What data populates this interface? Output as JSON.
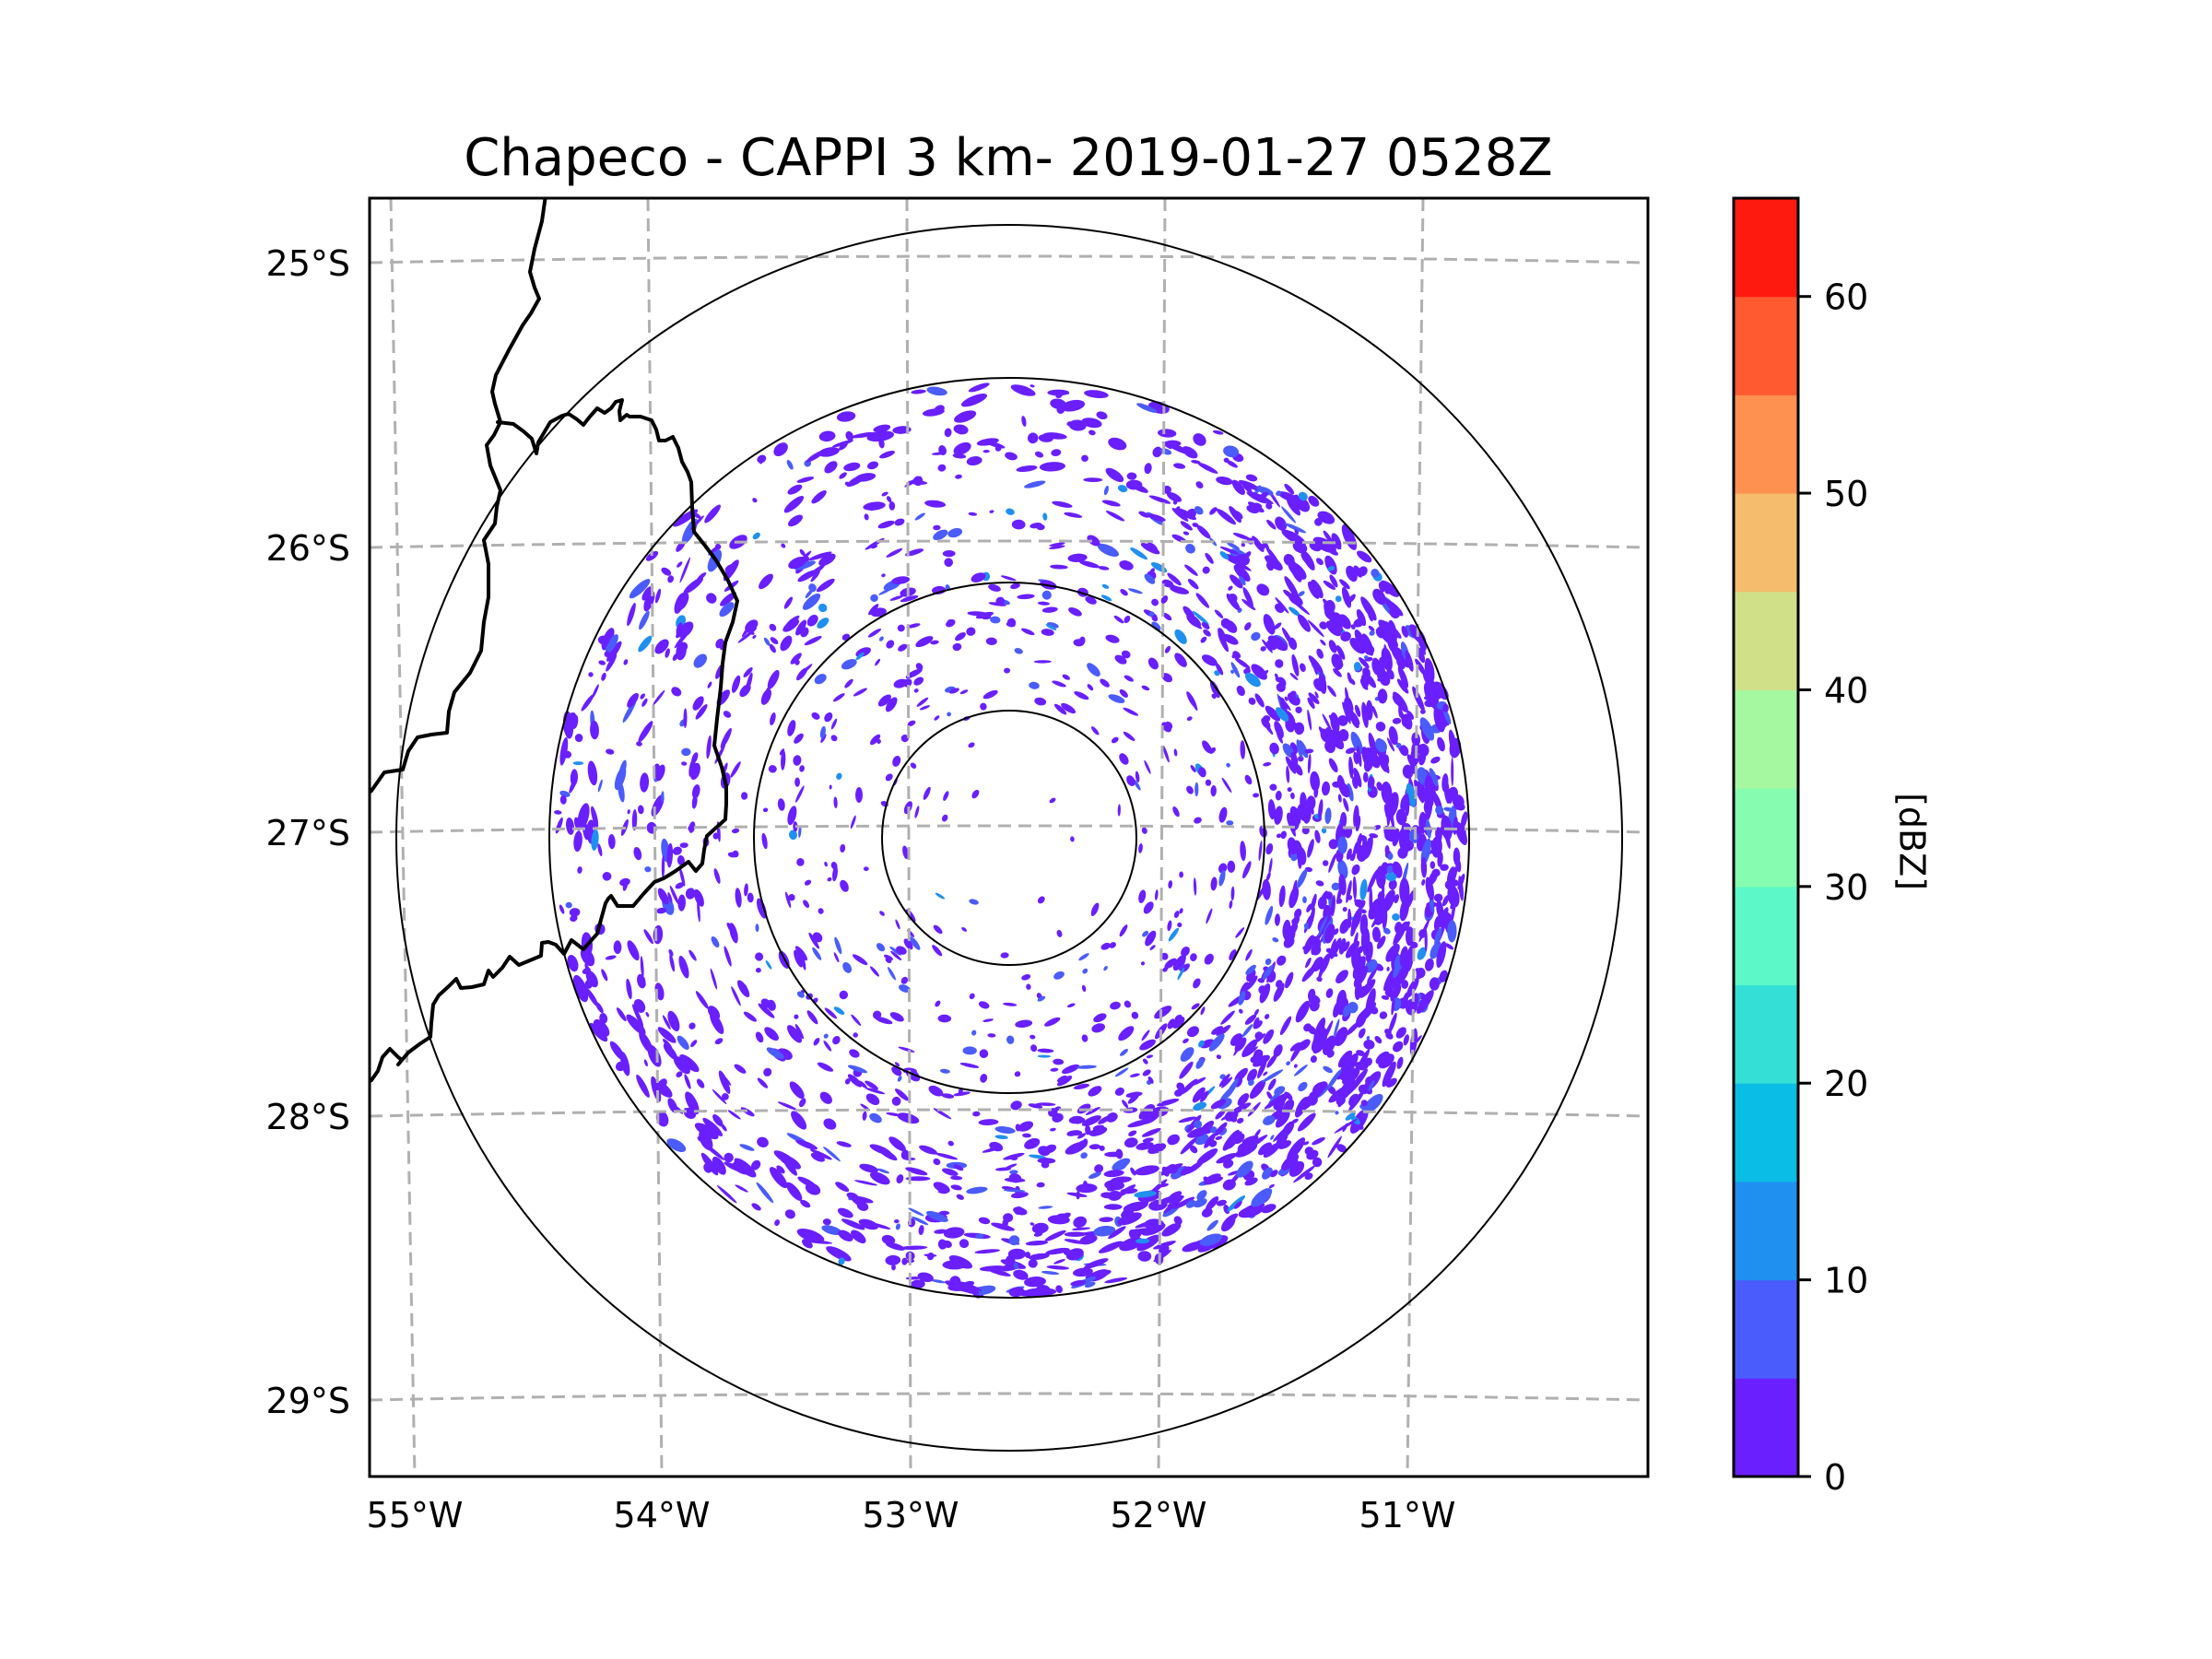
{
  "chart_data": {
    "type": "heatmap",
    "title": "Chapeco - CAPPI 3 km- 2019-01-27 0528Z",
    "xlabel": "",
    "ylabel": "",
    "x_ticks": [
      {
        "value": -55,
        "label": "55°W"
      },
      {
        "value": -54,
        "label": "54°W"
      },
      {
        "value": -53,
        "label": "53°W"
      },
      {
        "value": -52,
        "label": "52°W"
      },
      {
        "value": -51,
        "label": "51°W"
      }
    ],
    "y_ticks": [
      {
        "value": -25,
        "label": "25°S"
      },
      {
        "value": -26,
        "label": "26°S"
      },
      {
        "value": -27,
        "label": "27°S"
      },
      {
        "value": -28,
        "label": "28°S"
      },
      {
        "value": -29,
        "label": "29°S"
      }
    ],
    "xlim": [
      -55.18,
      -50.05
    ],
    "ylim": [
      -29.27,
      -24.78
    ],
    "grid": true,
    "grid_style": "dashed",
    "radar": {
      "name": "Chapeco",
      "product": "CAPPI",
      "altitude_km": 3,
      "date": "2019-01-27",
      "time": "0528Z",
      "center_lat": -27.03,
      "center_lon": -52.6,
      "range_rings": 4
    },
    "field": {
      "variable": "reflectivity",
      "units": "dBZ",
      "observed_range_dbz": [
        0,
        15
      ],
      "dominant_level_dbz": [
        0,
        5
      ],
      "description": "Scattered weak echoes (mostly 0-5 dBZ, some 5-15 dBZ) within the third range ring, densest on the eastern and south-eastern side"
    },
    "colorbar": {
      "label": "[dBZ]",
      "range": [
        0,
        65
      ],
      "levels": [
        0,
        5,
        10,
        15,
        20,
        25,
        30,
        35,
        40,
        45,
        50,
        55,
        60,
        65
      ],
      "colors": [
        "#6a1fff",
        "#4a5cfc",
        "#2090f0",
        "#0abde6",
        "#34e0d6",
        "#5cf8c8",
        "#86fcb0",
        "#a6f8a0",
        "#d0e088",
        "#f4bc6c",
        "#ff9150",
        "#ff5a30",
        "#ff1a10"
      ],
      "ticks": [
        0,
        10,
        20,
        30,
        40,
        50,
        60
      ],
      "tick_labels": [
        "0",
        "10",
        "20",
        "30",
        "40",
        "50",
        "60"
      ]
    },
    "borders": "Argentina/Brazil/Paraguay political boundaries (black lines) in the west"
  }
}
